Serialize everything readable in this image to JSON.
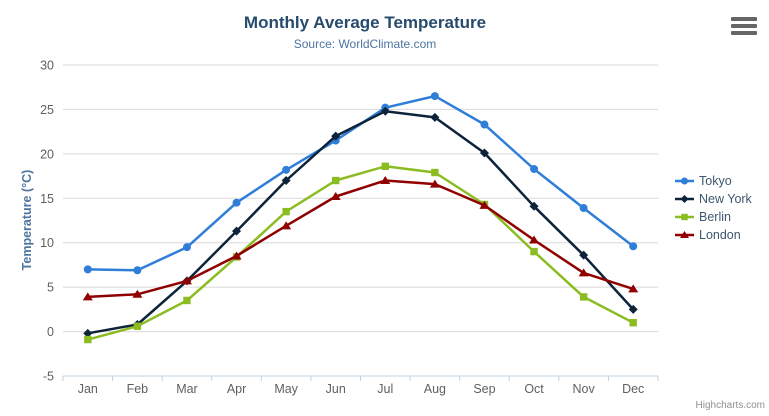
{
  "header": {
    "title": "Monthly Average Temperature",
    "subtitle": "Source: WorldClimate.com"
  },
  "credits": "Highcharts.com",
  "export_menu_icon": "hamburger-icon",
  "palette": {
    "title_color": "#274b6d",
    "subtitle_color": "#4d759e",
    "axis_title_color": "#4d759e",
    "tick_label_color": "#606060",
    "gridline_color": "#d8d8d8",
    "axis_line_color": "#c0d0e0",
    "legend_text_color": "#3e576f",
    "credits_color": "#909090",
    "menu_icon_color": "#666666"
  },
  "chart_data": {
    "type": "line",
    "title": "Monthly Average Temperature",
    "subtitle": "Source: WorldClimate.com",
    "xlabel": "",
    "ylabel": "Temperature (°C)",
    "categories": [
      "Jan",
      "Feb",
      "Mar",
      "Apr",
      "May",
      "Jun",
      "Jul",
      "Aug",
      "Sep",
      "Oct",
      "Nov",
      "Dec"
    ],
    "ylim": [
      -5,
      30
    ],
    "ytick_step": 5,
    "grid": true,
    "legend_position": "right",
    "series": [
      {
        "name": "Tokyo",
        "color": "#2f7ed8",
        "marker": "circle",
        "values": [
          7.0,
          6.9,
          9.5,
          14.5,
          18.2,
          21.5,
          25.2,
          26.5,
          23.3,
          18.3,
          13.9,
          9.6
        ]
      },
      {
        "name": "New York",
        "color": "#0d233a",
        "marker": "diamond",
        "values": [
          -0.2,
          0.8,
          5.7,
          11.3,
          17.0,
          22.0,
          24.8,
          24.1,
          20.1,
          14.1,
          8.6,
          2.5
        ]
      },
      {
        "name": "Berlin",
        "color": "#8bbc21",
        "marker": "square",
        "values": [
          -0.9,
          0.6,
          3.5,
          8.4,
          13.5,
          17.0,
          18.6,
          17.9,
          14.3,
          9.0,
          3.9,
          1.0
        ]
      },
      {
        "name": "London",
        "color": "#910000",
        "marker": "triangle",
        "values": [
          3.9,
          4.2,
          5.7,
          8.5,
          11.9,
          15.2,
          17.0,
          16.6,
          14.2,
          10.3,
          6.6,
          4.8
        ]
      }
    ]
  }
}
